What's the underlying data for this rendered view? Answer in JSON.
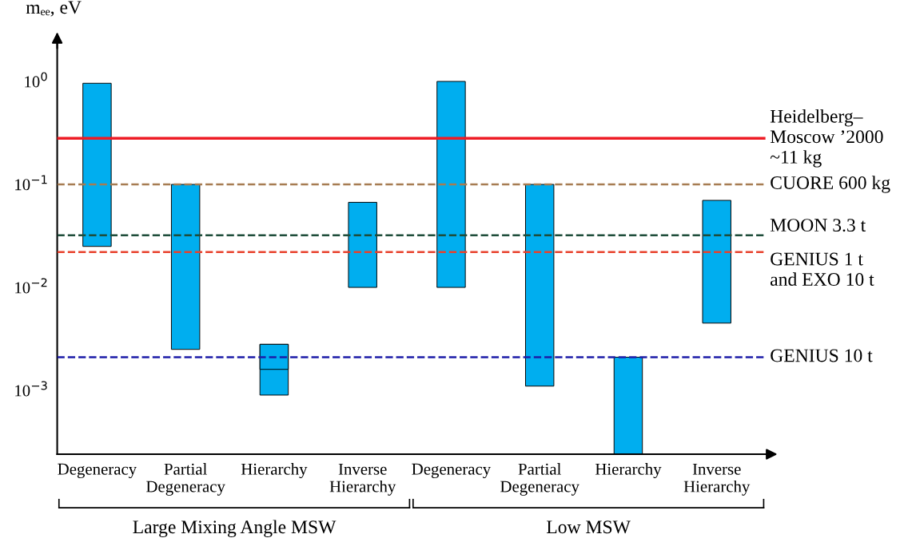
{
  "chart_data": {
    "type": "bar",
    "log": true,
    "grid": false,
    "ylabel": "mₑₑ, eV",
    "categories": [
      "Degeneracy",
      "Partial\nDegeneracy",
      "Hierarchy",
      "Inverse\nHierarchy",
      "Degeneracy",
      "Partial\nDegeneracy",
      "Hierarchy",
      "Inverse\nHierarchy"
    ],
    "series": [
      {
        "color": "#00aeef",
        "base": [
          0.025,
          0.0025,
          0.0009,
          0.01,
          0.01,
          0.0011,
          0.00024,
          0.0045
        ],
        "values": [
          0.935,
          0.0975,
          0.0019,
          0.057,
          0.99,
          0.0989,
          0.00186,
          0.0655
        ]
      },
      {
        "color": "#00aeef",
        "base": [
          null,
          null,
          0.0016,
          null,
          null,
          null,
          null,
          null
        ],
        "values": [
          null,
          null,
          0.0012,
          null,
          null,
          null,
          null,
          null
        ]
      }
    ],
    "ylim": [
      0.00024,
      2.4
    ],
    "yticks": [
      {
        "value": 0.001,
        "label": "10$^{−3}$"
      },
      {
        "value": 0.01,
        "label": "10$^{−2}$"
      },
      {
        "value": 0.1,
        "label": "10$^{−1}$"
      },
      {
        "value": 1,
        "label": "10$^{0}$"
      }
    ],
    "ref_lines": [
      {
        "axis": "y",
        "value": 0.28,
        "label": "Heidelberg–\nMoscow ’2000\n~11 kg",
        "color": "#ee1c25",
        "line_style": "solid"
      },
      {
        "axis": "y",
        "value": 0.1,
        "label": "CUORE 600 kg",
        "color": "#a67c52",
        "line_style": "dashed"
      },
      {
        "axis": "y",
        "value": 0.032,
        "label": "MOON 3.3 t",
        "color": "#1e4d3a",
        "line_style": "dashed"
      },
      {
        "axis": "y",
        "value": 0.022,
        "label": "GENIUS 1 t\nand EXO 10 t",
        "color": "#e8412c",
        "line_style": "dashed"
      },
      {
        "axis": "y",
        "value": 0.0021,
        "label": "GENIUS 10 t",
        "color": "#1c1ca8",
        "line_style": "dashed"
      }
    ],
    "annotations": [
      "Large Mixing Angle MSW",
      "Low MSW"
    ]
  }
}
